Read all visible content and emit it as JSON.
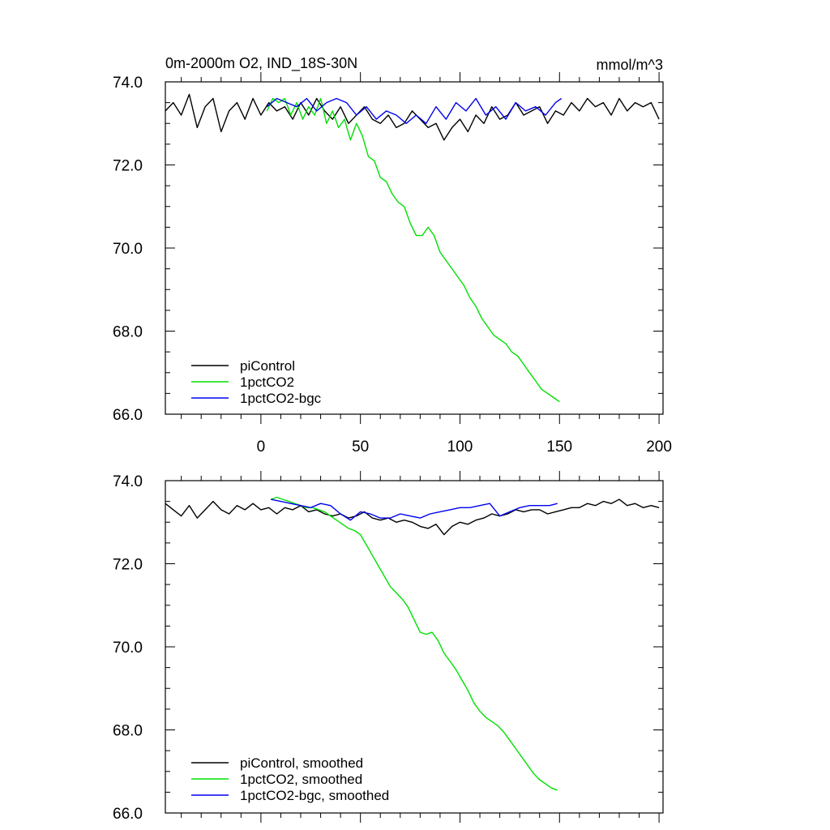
{
  "chart_data": [
    {
      "type": "line",
      "title": "0m-2000m O2, IND_18S-30N",
      "units_label": "mmol/m^3",
      "xlabel": "",
      "ylabel": "",
      "xlim": [
        -48,
        202
      ],
      "ylim": [
        66.0,
        74.0
      ],
      "x_tick_labels": [
        "0",
        "50",
        "100",
        "150",
        "200"
      ],
      "y_tick_labels": [
        "74.0",
        "72.0",
        "70.0",
        "68.0",
        "66.0"
      ],
      "grid": false,
      "legend_position": "bottom-left",
      "series": [
        {
          "name": "piControl",
          "color": "#000000",
          "x": [
            -48,
            -44,
            -40,
            -36,
            -32,
            -28,
            -24,
            -20,
            -16,
            -12,
            -8,
            -4,
            0,
            4,
            8,
            12,
            16,
            20,
            24,
            28,
            32,
            36,
            40,
            44,
            48,
            52,
            56,
            60,
            64,
            68,
            72,
            76,
            80,
            84,
            88,
            92,
            96,
            100,
            104,
            108,
            112,
            116,
            120,
            124,
            128,
            132,
            136,
            140,
            144,
            148,
            152,
            156,
            160,
            164,
            168,
            172,
            176,
            180,
            184,
            188,
            192,
            196,
            200
          ],
          "y": [
            73.3,
            73.5,
            73.2,
            73.7,
            72.9,
            73.4,
            73.6,
            72.8,
            73.3,
            73.5,
            73.1,
            73.6,
            73.2,
            73.5,
            73.3,
            73.4,
            73.1,
            73.5,
            73.2,
            73.6,
            73.3,
            73.1,
            73.4,
            73.0,
            73.2,
            73.4,
            73.1,
            73.0,
            73.2,
            72.9,
            73.0,
            73.3,
            73.1,
            72.9,
            73.0,
            72.6,
            72.9,
            73.1,
            72.8,
            73.2,
            73.0,
            73.4,
            73.1,
            73.2,
            73.5,
            73.2,
            73.3,
            73.4,
            73.0,
            73.3,
            73.2,
            73.5,
            73.3,
            73.6,
            73.4,
            73.5,
            73.2,
            73.6,
            73.3,
            73.5,
            73.4,
            73.5,
            73.1
          ]
        },
        {
          "name": "1pctCO2",
          "color": "#00e000",
          "x": [
            3,
            6,
            9,
            12,
            15,
            18,
            21,
            24,
            27,
            30,
            33,
            36,
            39,
            42,
            45,
            48,
            51,
            54,
            57,
            60,
            63,
            66,
            69,
            72,
            75,
            78,
            81,
            84,
            87,
            90,
            93,
            96,
            99,
            102,
            105,
            108,
            111,
            114,
            117,
            120,
            123,
            126,
            129,
            132,
            135,
            138,
            141,
            144,
            147,
            150
          ],
          "y": [
            73.3,
            73.6,
            73.5,
            73.6,
            73.2,
            73.5,
            73.1,
            73.4,
            73.2,
            73.6,
            73.0,
            73.3,
            72.9,
            73.1,
            72.6,
            73.0,
            72.7,
            72.2,
            72.1,
            71.7,
            71.6,
            71.3,
            71.1,
            71.0,
            70.6,
            70.3,
            70.3,
            70.5,
            70.3,
            69.9,
            69.7,
            69.5,
            69.3,
            69.1,
            68.8,
            68.6,
            68.3,
            68.1,
            67.9,
            67.8,
            67.7,
            67.5,
            67.4,
            67.2,
            67.0,
            66.8,
            66.6,
            66.5,
            66.4,
            66.3
          ]
        },
        {
          "name": "1pctCO2-bgc",
          "color": "#0000ee",
          "x": [
            3,
            8,
            13,
            18,
            23,
            28,
            33,
            38,
            43,
            48,
            53,
            58,
            63,
            68,
            73,
            78,
            83,
            88,
            93,
            98,
            103,
            108,
            113,
            118,
            123,
            128,
            133,
            138,
            143,
            148,
            151
          ],
          "y": [
            73.4,
            73.6,
            73.5,
            73.4,
            73.6,
            73.3,
            73.5,
            73.6,
            73.5,
            73.2,
            73.4,
            73.1,
            73.3,
            73.2,
            73.0,
            73.2,
            73.0,
            73.4,
            73.1,
            73.5,
            73.3,
            73.6,
            73.2,
            73.4,
            73.1,
            73.5,
            73.3,
            73.4,
            73.2,
            73.5,
            73.6
          ]
        }
      ]
    },
    {
      "type": "line",
      "title": "",
      "xlabel": "",
      "ylabel": "",
      "xlim": [
        -48,
        202
      ],
      "ylim": [
        66.0,
        74.0
      ],
      "y_tick_labels": [
        "74.0",
        "72.0",
        "70.0",
        "68.0",
        "66.0"
      ],
      "grid": false,
      "legend_position": "bottom-left",
      "series": [
        {
          "name": "piControl, smoothed",
          "color": "#000000",
          "x": [
            -48,
            -44,
            -40,
            -36,
            -32,
            -28,
            -24,
            -20,
            -16,
            -12,
            -8,
            -4,
            0,
            4,
            8,
            12,
            16,
            20,
            24,
            28,
            32,
            36,
            40,
            44,
            48,
            52,
            56,
            60,
            64,
            68,
            72,
            76,
            80,
            84,
            88,
            92,
            96,
            100,
            104,
            108,
            112,
            116,
            120,
            124,
            128,
            132,
            136,
            140,
            144,
            148,
            152,
            156,
            160,
            164,
            168,
            172,
            176,
            180,
            184,
            188,
            192,
            196,
            200
          ],
          "y": [
            73.45,
            73.3,
            73.15,
            73.4,
            73.1,
            73.3,
            73.5,
            73.3,
            73.2,
            73.4,
            73.3,
            73.45,
            73.3,
            73.35,
            73.2,
            73.35,
            73.3,
            73.4,
            73.25,
            73.3,
            73.2,
            73.15,
            73.2,
            73.1,
            73.15,
            73.25,
            73.1,
            73.05,
            73.1,
            73.0,
            73.05,
            73.0,
            72.9,
            72.85,
            72.95,
            72.7,
            72.9,
            73.0,
            72.95,
            73.05,
            73.1,
            73.2,
            73.15,
            73.2,
            73.3,
            73.25,
            73.3,
            73.3,
            73.2,
            73.25,
            73.3,
            73.35,
            73.35,
            73.45,
            73.4,
            73.5,
            73.45,
            73.55,
            73.4,
            73.45,
            73.35,
            73.4,
            73.35
          ]
        },
        {
          "name": "1pctCO2, smoothed",
          "color": "#00e000",
          "x": [
            5,
            8,
            11,
            14,
            17,
            20,
            23,
            26,
            29,
            32,
            35,
            38,
            41,
            44,
            47,
            50,
            53,
            56,
            59,
            62,
            65,
            68,
            71,
            74,
            77,
            80,
            83,
            86,
            89,
            92,
            95,
            98,
            101,
            104,
            107,
            110,
            113,
            116,
            119,
            122,
            125,
            128,
            131,
            134,
            137,
            140,
            143,
            146,
            149
          ],
          "y": [
            73.55,
            73.6,
            73.55,
            73.5,
            73.45,
            73.4,
            73.35,
            73.35,
            73.3,
            73.25,
            73.15,
            73.05,
            72.95,
            72.85,
            72.8,
            72.7,
            72.45,
            72.2,
            71.95,
            71.7,
            71.45,
            71.3,
            71.15,
            70.95,
            70.65,
            70.35,
            70.3,
            70.35,
            70.15,
            69.85,
            69.65,
            69.45,
            69.2,
            68.95,
            68.65,
            68.45,
            68.3,
            68.2,
            68.1,
            67.95,
            67.75,
            67.55,
            67.35,
            67.15,
            66.95,
            66.8,
            66.7,
            66.6,
            66.55
          ]
        },
        {
          "name": "1pctCO2-bgc, smoothed",
          "color": "#0000ee",
          "x": [
            5,
            10,
            15,
            20,
            25,
            30,
            35,
            40,
            45,
            50,
            55,
            60,
            65,
            70,
            75,
            80,
            85,
            90,
            95,
            100,
            105,
            110,
            115,
            120,
            125,
            130,
            135,
            140,
            145,
            149
          ],
          "y": [
            73.55,
            73.5,
            73.45,
            73.4,
            73.35,
            73.45,
            73.4,
            73.2,
            73.05,
            73.25,
            73.2,
            73.1,
            73.1,
            73.2,
            73.15,
            73.1,
            73.2,
            73.25,
            73.3,
            73.35,
            73.35,
            73.4,
            73.45,
            73.15,
            73.25,
            73.35,
            73.4,
            73.4,
            73.4,
            73.45
          ]
        }
      ]
    }
  ]
}
